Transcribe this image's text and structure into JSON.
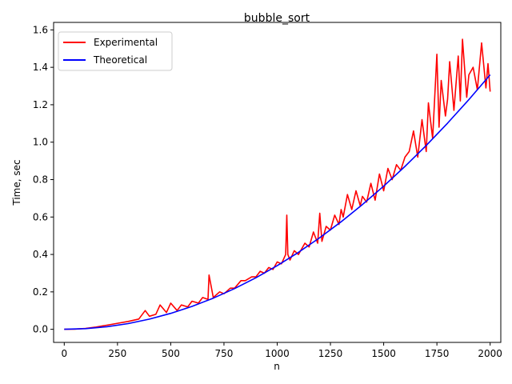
{
  "chart_data": {
    "type": "line",
    "title": "bubble_sort",
    "xlabel": "n",
    "ylabel": "Time, sec",
    "xlim": [
      -50,
      2050
    ],
    "ylim": [
      -0.07,
      1.64
    ],
    "xticks": [
      0,
      250,
      500,
      750,
      1000,
      1250,
      1500,
      1750,
      2000
    ],
    "yticks": [
      0.0,
      0.2,
      0.4,
      0.6,
      0.8,
      1.0,
      1.2,
      1.4,
      1.6
    ],
    "grid": false,
    "legend_position": "top-left",
    "series": [
      {
        "name": "Experimental",
        "color": "#ff0000",
        "x": [
          0,
          50,
          100,
          150,
          200,
          250,
          300,
          350,
          380,
          400,
          430,
          450,
          480,
          500,
          530,
          550,
          580,
          600,
          630,
          650,
          675,
          680,
          700,
          730,
          750,
          780,
          800,
          830,
          850,
          880,
          900,
          920,
          940,
          960,
          980,
          1000,
          1020,
          1040,
          1045,
          1050,
          1060,
          1080,
          1100,
          1130,
          1150,
          1170,
          1190,
          1200,
          1210,
          1230,
          1250,
          1270,
          1290,
          1300,
          1310,
          1330,
          1350,
          1370,
          1390,
          1400,
          1420,
          1440,
          1460,
          1480,
          1500,
          1520,
          1540,
          1560,
          1580,
          1600,
          1620,
          1640,
          1660,
          1680,
          1700,
          1710,
          1730,
          1750,
          1760,
          1770,
          1790,
          1800,
          1810,
          1830,
          1850,
          1860,
          1870,
          1890,
          1900,
          1920,
          1940,
          1960,
          1980,
          1990,
          2000
        ],
        "y": [
          0.0,
          0.001,
          0.005,
          0.012,
          0.022,
          0.032,
          0.042,
          0.055,
          0.1,
          0.07,
          0.08,
          0.13,
          0.09,
          0.14,
          0.1,
          0.13,
          0.12,
          0.15,
          0.14,
          0.17,
          0.16,
          0.29,
          0.17,
          0.2,
          0.19,
          0.22,
          0.22,
          0.26,
          0.26,
          0.28,
          0.28,
          0.31,
          0.3,
          0.33,
          0.32,
          0.36,
          0.35,
          0.4,
          0.61,
          0.4,
          0.37,
          0.42,
          0.4,
          0.46,
          0.44,
          0.52,
          0.46,
          0.62,
          0.47,
          0.55,
          0.53,
          0.61,
          0.56,
          0.64,
          0.6,
          0.72,
          0.64,
          0.74,
          0.66,
          0.71,
          0.68,
          0.78,
          0.69,
          0.83,
          0.74,
          0.86,
          0.8,
          0.88,
          0.85,
          0.92,
          0.95,
          1.06,
          0.92,
          1.12,
          0.95,
          1.21,
          1.02,
          1.47,
          1.08,
          1.33,
          1.14,
          1.23,
          1.43,
          1.17,
          1.46,
          1.22,
          1.55,
          1.24,
          1.36,
          1.4,
          1.28,
          1.53,
          1.29,
          1.42,
          1.27
        ]
      },
      {
        "name": "Theoretical",
        "color": "#0000ff",
        "x": [
          0,
          100,
          200,
          300,
          400,
          500,
          600,
          700,
          800,
          900,
          1000,
          1100,
          1200,
          1300,
          1400,
          1500,
          1600,
          1700,
          1800,
          1900,
          2000
        ],
        "y": [
          0.0,
          0.0034,
          0.0136,
          0.0306,
          0.0544,
          0.085,
          0.1224,
          0.1666,
          0.2176,
          0.2754,
          0.34,
          0.4114,
          0.4896,
          0.5746,
          0.6664,
          0.765,
          0.8704,
          0.9826,
          1.1016,
          1.2274,
          1.36
        ]
      }
    ]
  }
}
